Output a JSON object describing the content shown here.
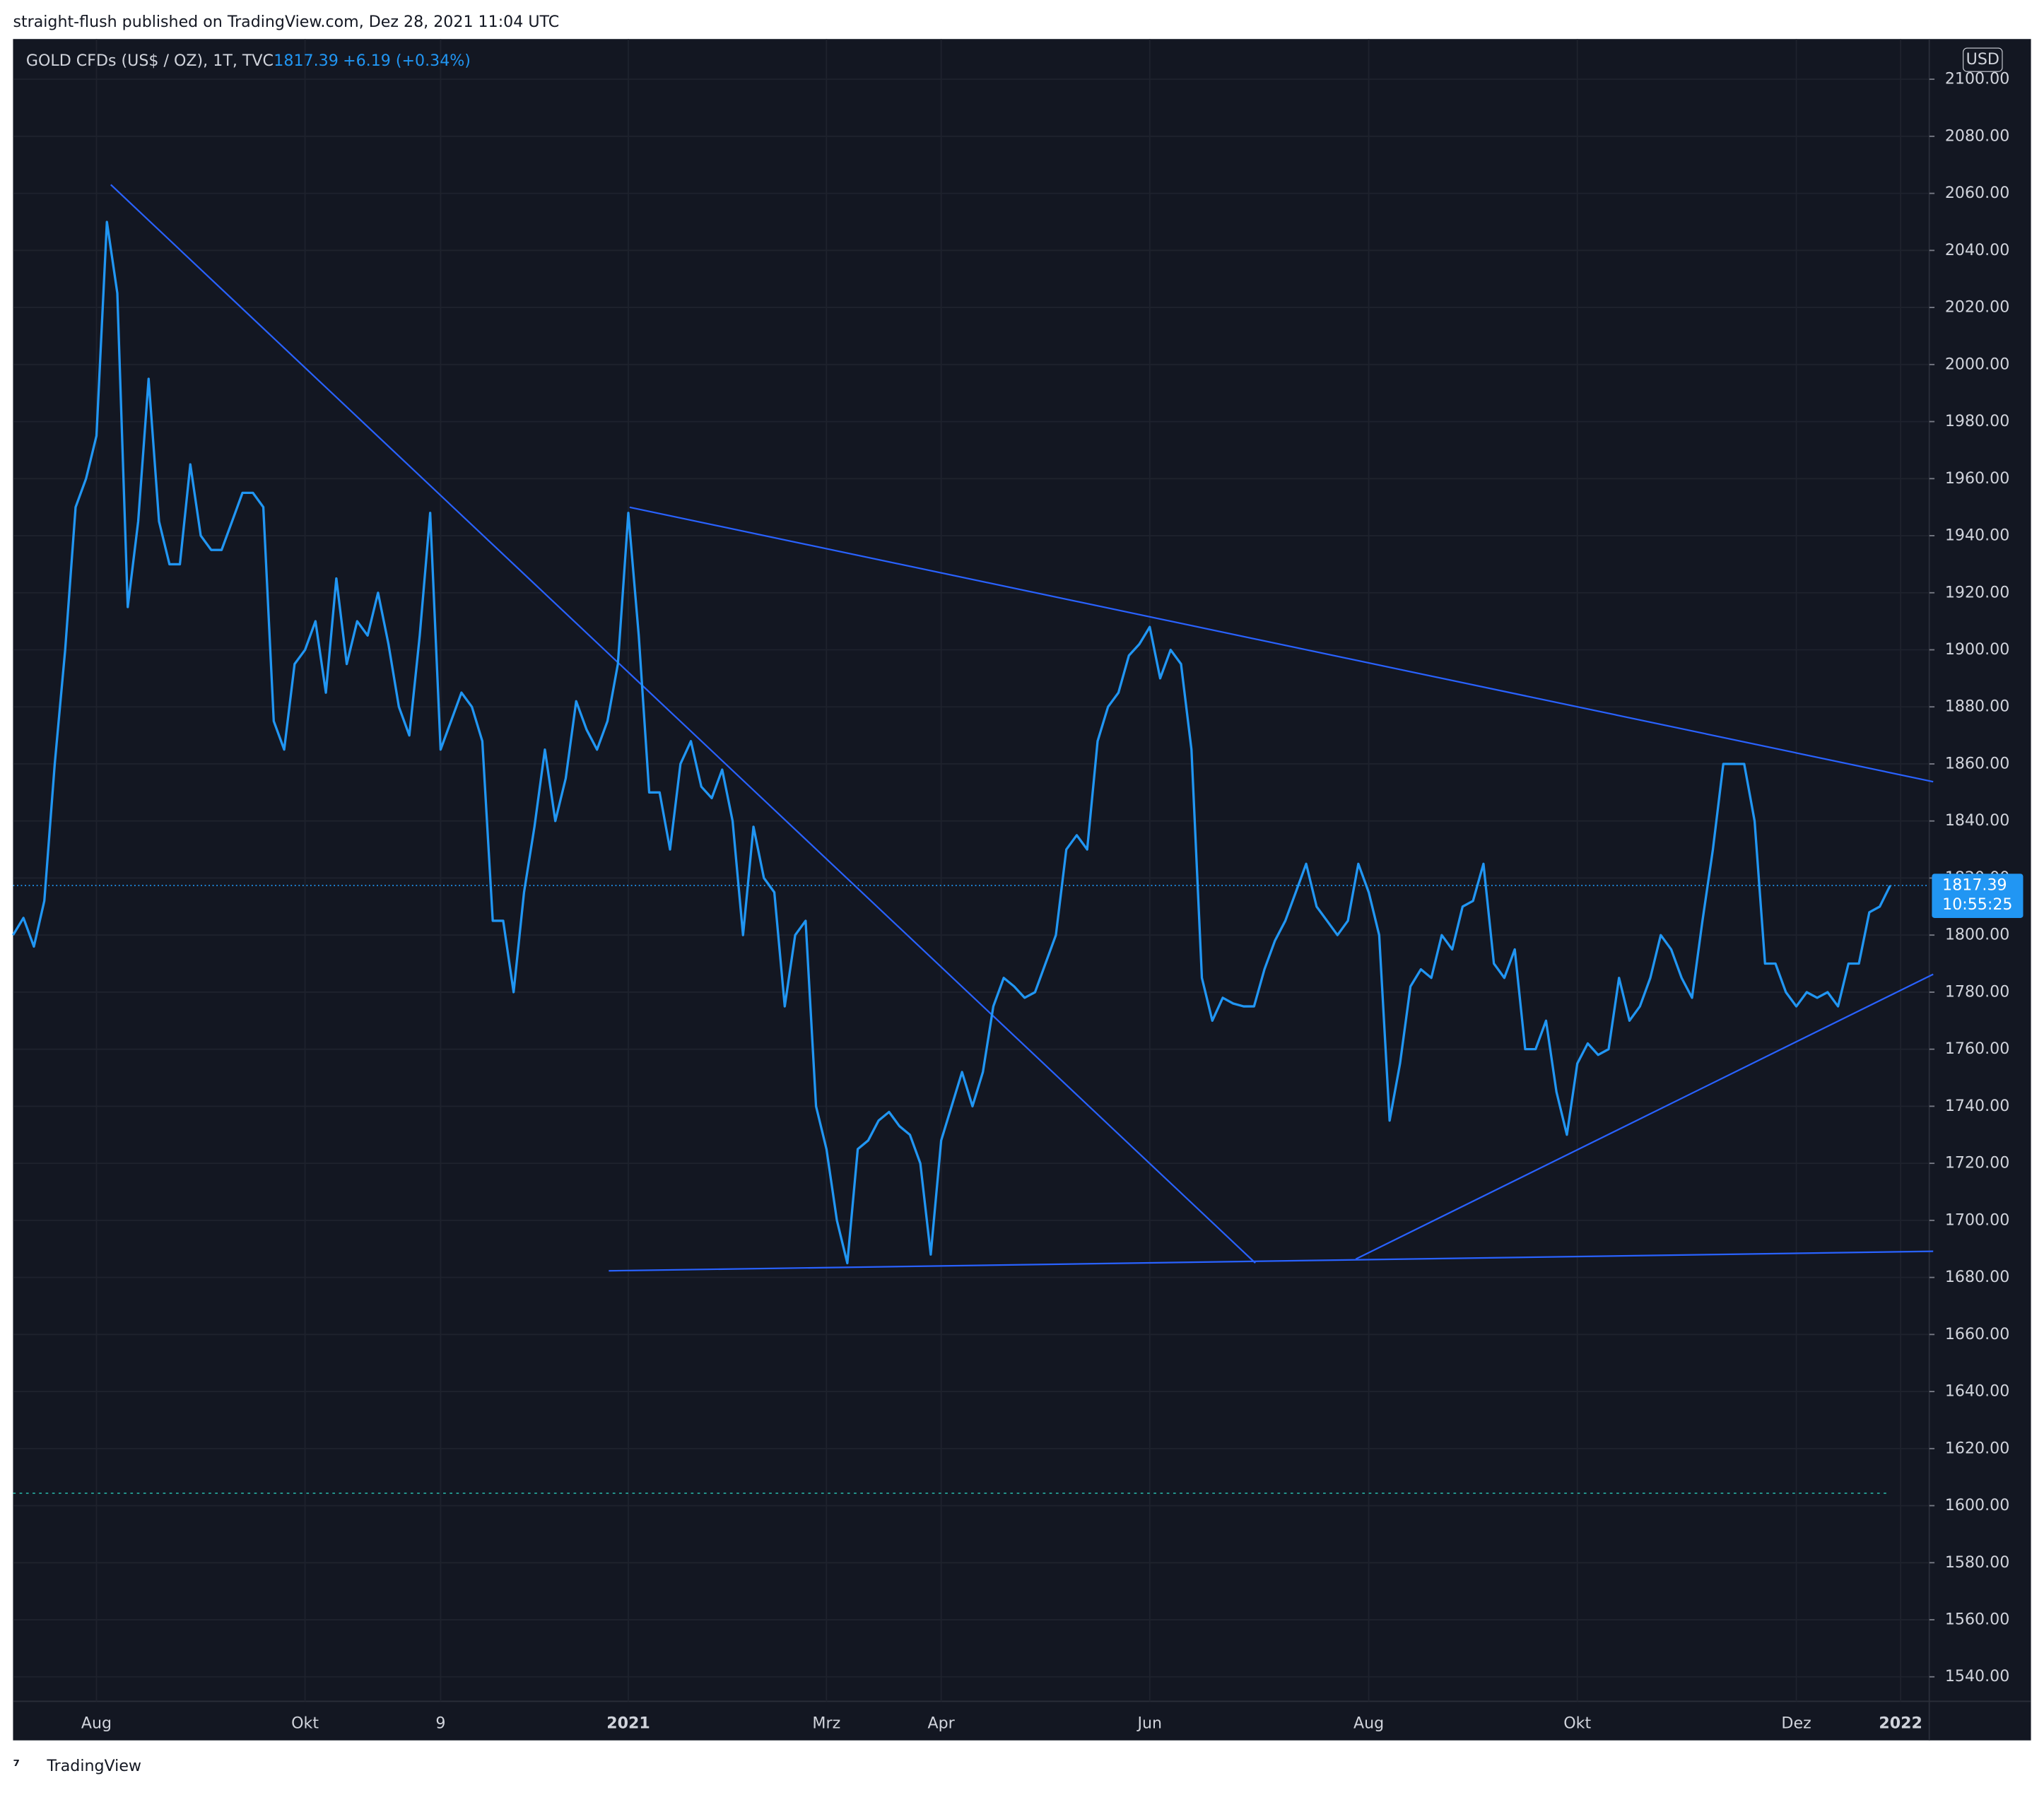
{
  "header": "straight-flush published on TradingView.com, Dez 28, 2021 11:04 UTC",
  "footer": "TradingView",
  "chart_data": {
    "type": "line",
    "title": "GOLD CFDs (US$ / OZ), 1T, TVC",
    "change": "+6.19 (+0.34%)",
    "currency": "USD",
    "countdown": "10:55:25",
    "categories": [
      null,
      null,
      null,
      null,
      null,
      null,
      null,
      null,
      "Aug",
      null,
      null,
      null,
      null,
      null,
      null,
      null,
      null,
      null,
      null,
      null,
      null,
      null,
      null,
      null,
      null,
      null,
      null,
      null,
      "Okt",
      null,
      null,
      null,
      null,
      null,
      null,
      null,
      null,
      null,
      null,
      null,
      null,
      "9",
      null,
      null,
      null,
      null,
      null,
      null,
      null,
      null,
      null,
      null,
      null,
      null,
      null,
      null,
      null,
      null,
      null,
      "2021",
      null,
      null,
      null,
      null,
      null,
      null,
      null,
      null,
      null,
      null,
      null,
      null,
      null,
      null,
      null,
      null,
      null,
      null,
      "Mrz",
      null,
      null,
      null,
      null,
      null,
      null,
      null,
      null,
      null,
      null,
      "Apr",
      null,
      null,
      null,
      null,
      null,
      null,
      null,
      null,
      null,
      null,
      null,
      null,
      null,
      null,
      null,
      null,
      null,
      null,
      null,
      "Jun",
      null,
      null,
      null,
      null,
      null,
      null,
      null,
      null,
      null,
      null,
      null,
      null,
      null,
      null,
      null,
      null,
      null,
      null,
      null,
      null,
      "Aug",
      null,
      null,
      null,
      null,
      null,
      null,
      null,
      null,
      null,
      null,
      null,
      null,
      null,
      null,
      null,
      null,
      null,
      null,
      null,
      "Okt",
      null,
      null,
      null,
      null,
      null,
      null,
      null,
      null,
      null,
      null,
      null,
      null,
      null,
      null,
      null,
      null,
      null,
      null,
      null,
      null,
      "Dez",
      null,
      null,
      null,
      null,
      null,
      null,
      null,
      null,
      null,
      "2022",
      null,
      null
    ],
    "series": [
      {
        "name": "GOLD CFDs (US$ / OZ), 1T, TVC",
        "color": "#2196f3",
        "values": [
          1800,
          1806,
          1796,
          1812,
          1860,
          1900,
          1950,
          1960,
          1975,
          2050,
          2025,
          1915,
          1945,
          1995,
          1945,
          1930,
          1930,
          1965,
          1940,
          1935,
          1935,
          1945,
          1955,
          1955,
          1950,
          1875,
          1865,
          1895,
          1900,
          1910,
          1885,
          1925,
          1895,
          1910,
          1905,
          1920,
          1902,
          1880,
          1870,
          1905,
          1948,
          1865,
          1875,
          1885,
          1880,
          1868,
          1805,
          1805,
          1780,
          1815,
          1838,
          1865,
          1840,
          1855,
          1882,
          1872,
          1865,
          1875,
          1895,
          1948,
          1905,
          1850,
          1850,
          1830,
          1860,
          1868,
          1852,
          1848,
          1858,
          1840,
          1800,
          1838,
          1820,
          1815,
          1775,
          1800,
          1805,
          1740,
          1725,
          1700,
          1685,
          1725,
          1728,
          1735,
          1738,
          1733,
          1730,
          1720,
          1688,
          1728,
          1740,
          1752,
          1740,
          1752,
          1775,
          1785,
          1782,
          1778,
          1780,
          1790,
          1800,
          1830,
          1835,
          1830,
          1868,
          1880,
          1885,
          1898,
          1902,
          1908,
          1890,
          1900,
          1895,
          1865,
          1785,
          1770,
          1778,
          1776,
          1775,
          1775,
          1788,
          1798,
          1805,
          1815,
          1825,
          1810,
          1805,
          1800,
          1805,
          1825,
          1815,
          1800,
          1735,
          1755,
          1782,
          1788,
          1785,
          1800,
          1795,
          1810,
          1812,
          1825,
          1790,
          1785,
          1795,
          1760,
          1760,
          1770,
          1745,
          1730,
          1755,
          1762,
          1758,
          1760,
          1785,
          1770,
          1775,
          1785,
          1800,
          1795,
          1785,
          1778,
          1805,
          1830,
          1860,
          1860,
          1860,
          1840,
          1790,
          1790,
          1780,
          1775,
          1780,
          1778,
          1780,
          1775,
          1790,
          1790,
          1808,
          1810,
          1817.39,
          null,
          null,
          null
        ]
      }
    ],
    "ylim": [
      1531.4,
      2114.1
    ],
    "yticks": [
      {
        "value": 1540,
        "label": "1540.00"
      },
      {
        "value": 1560,
        "label": "1560.00"
      },
      {
        "value": 1580,
        "label": "1580.00"
      },
      {
        "value": 1600,
        "label": "1600.00"
      },
      {
        "value": 1620,
        "label": "1620.00"
      },
      {
        "value": 1640,
        "label": "1640.00"
      },
      {
        "value": 1660,
        "label": "1660.00"
      },
      {
        "value": 1680,
        "label": "1680.00"
      },
      {
        "value": 1700,
        "label": "1700.00"
      },
      {
        "value": 1720,
        "label": "1720.00"
      },
      {
        "value": 1740,
        "label": "1740.00"
      },
      {
        "value": 1760,
        "label": "1760.00"
      },
      {
        "value": 1780,
        "label": "1780.00"
      },
      {
        "value": 1800,
        "label": "1800.00"
      },
      {
        "value": 1820,
        "label": "1820.00"
      },
      {
        "value": 1840,
        "label": "1840.00"
      },
      {
        "value": 1860,
        "label": "1860.00"
      },
      {
        "value": 1880,
        "label": "1880.00"
      },
      {
        "value": 1900,
        "label": "1900.00"
      },
      {
        "value": 1920,
        "label": "1920.00"
      },
      {
        "value": 1940,
        "label": "1940.00"
      },
      {
        "value": 1960,
        "label": "1960.00"
      },
      {
        "value": 1980,
        "label": "1980.00"
      },
      {
        "value": 2000,
        "label": "2000.00"
      },
      {
        "value": 2020,
        "label": "2020.00"
      },
      {
        "value": 2040,
        "label": "2040.00"
      },
      {
        "value": 2060,
        "label": "2060.00"
      },
      {
        "value": 2080,
        "label": "2080.00"
      },
      {
        "value": 2100,
        "label": "2100.00"
      }
    ],
    "grid": true
  }
}
